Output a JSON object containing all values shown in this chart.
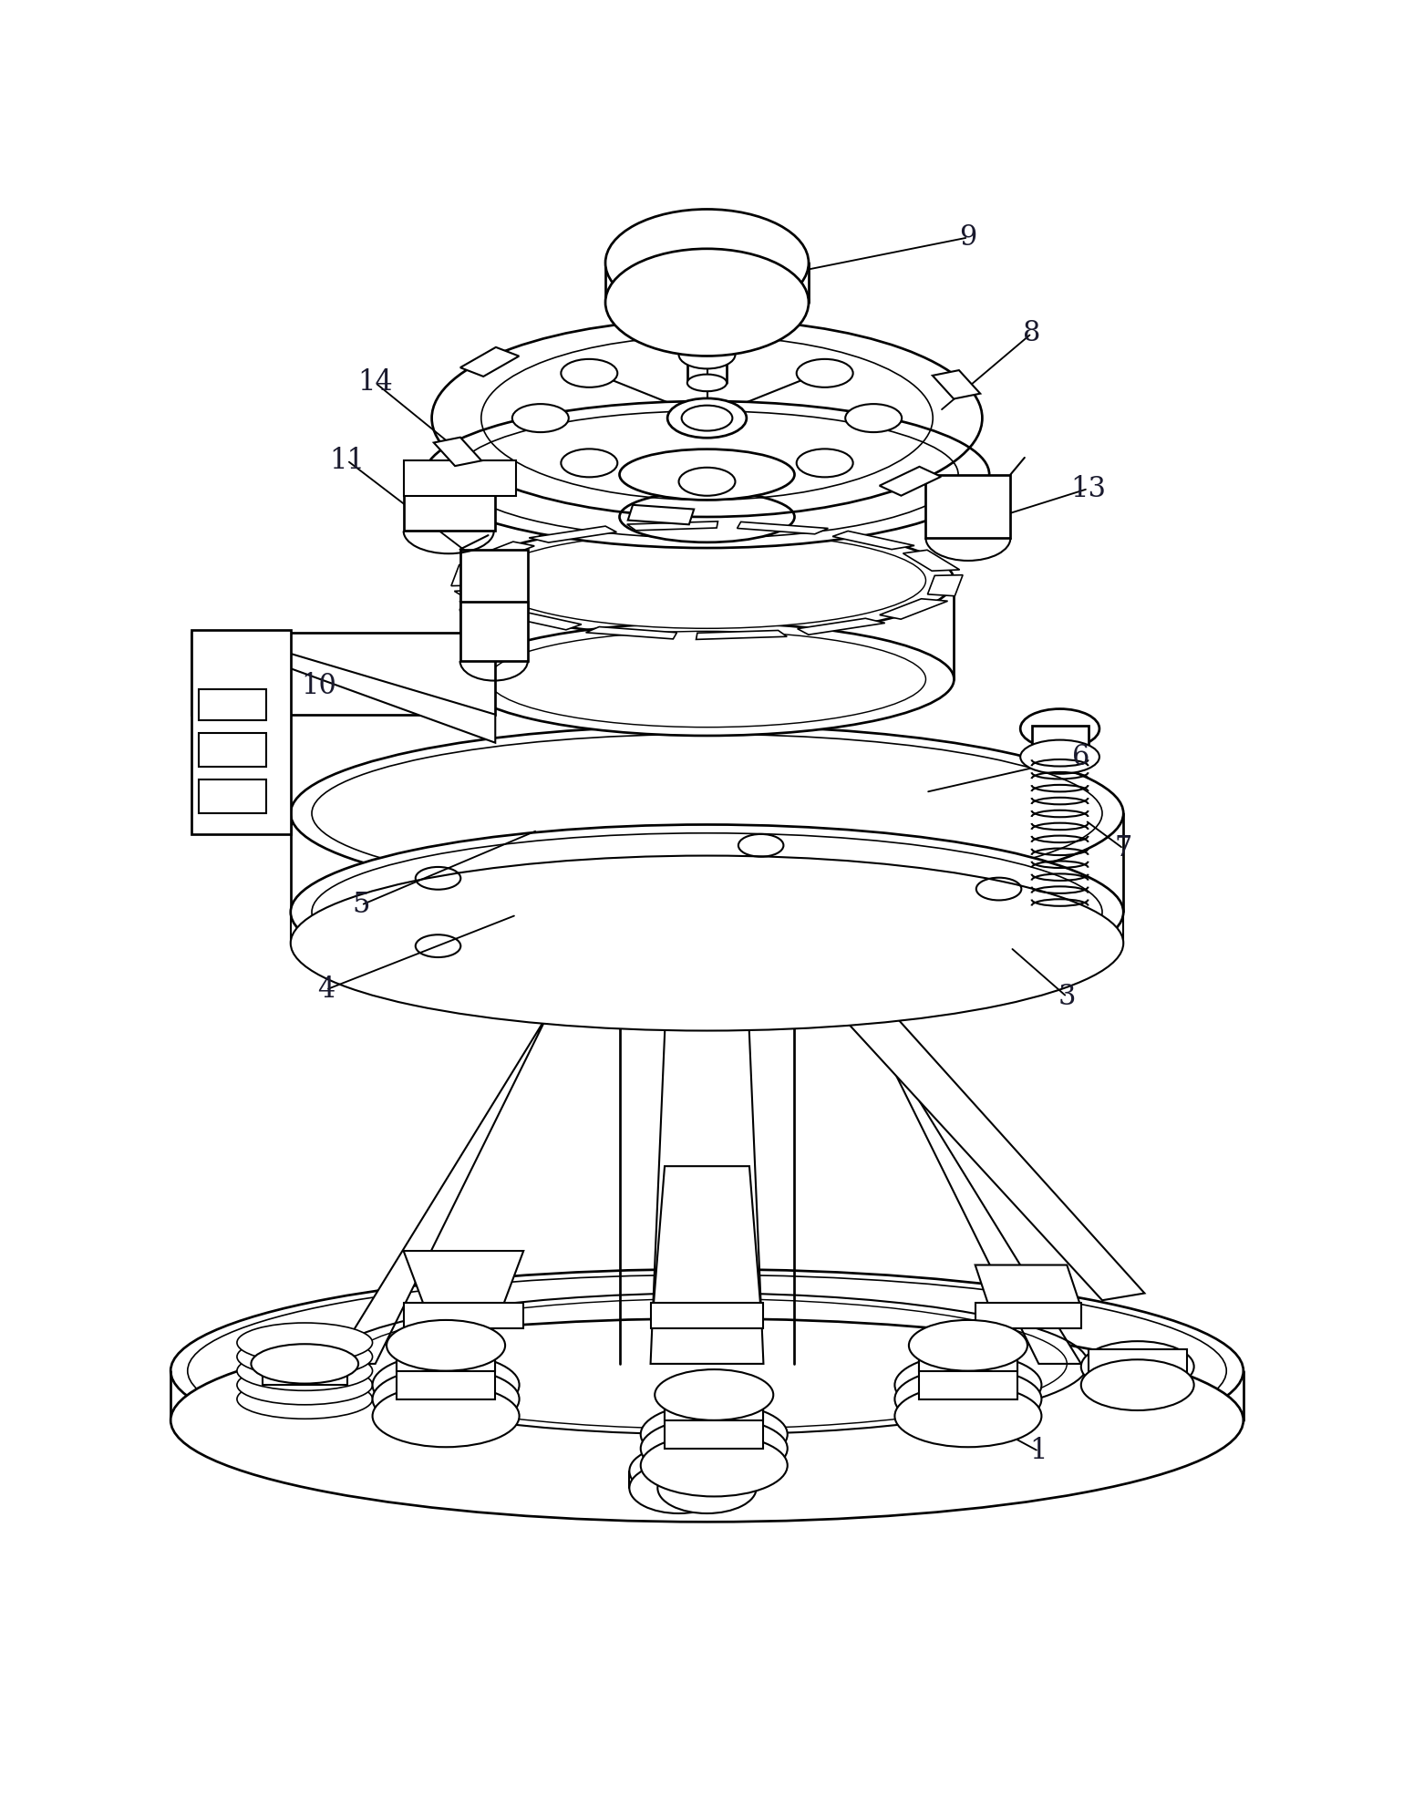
{
  "bg_color": "#ffffff",
  "line_color": "#000000",
  "line_width": 1.5,
  "figsize": [
    15.51,
    19.7
  ],
  "dpi": 100,
  "label_fontsize": 22,
  "label_color": "#1a1a2e"
}
